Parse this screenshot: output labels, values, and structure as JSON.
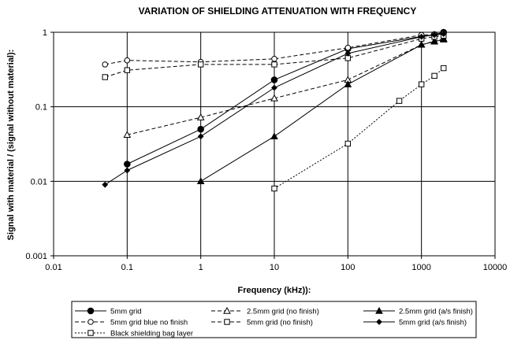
{
  "chart_data": {
    "type": "line",
    "title": "VARIATION OF SHIELDING ATTENUATION WITH FREQUENCY",
    "xlabel": "Frequency (kHz)):",
    "ylabel": "Signal with material / (signal without material):",
    "x_scale": "log",
    "y_scale": "log",
    "xlim": [
      0.01,
      10000
    ],
    "ylim": [
      0.001,
      1
    ],
    "x_ticks": [
      "0.01",
      "0.1",
      "1",
      "10",
      "100",
      "1000",
      "10000"
    ],
    "y_ticks": [
      "0.001",
      "0.01",
      "0.1",
      "1"
    ],
    "grid": true,
    "legend_position": "bottom",
    "series": [
      {
        "name": "5mm grid",
        "line": "solid",
        "marker": "circle-filled",
        "x": [
          0.1,
          1,
          10,
          100,
          1000,
          1500,
          2000
        ],
        "y": [
          0.017,
          0.05,
          0.23,
          0.6,
          0.88,
          0.93,
          1.0
        ]
      },
      {
        "name": "2.5mm grid (no finish)",
        "line": "dashed",
        "marker": "triangle-open",
        "x": [
          0.1,
          1,
          10,
          100,
          1000,
          1500,
          2000
        ],
        "y": [
          0.042,
          0.072,
          0.13,
          0.23,
          0.68,
          0.76,
          0.82
        ]
      },
      {
        "name": "2.5mm grid (a/s finish)",
        "line": "solid",
        "marker": "triangle-filled",
        "x": [
          1,
          10,
          100,
          1000,
          1500,
          2000
        ],
        "y": [
          0.01,
          0.04,
          0.2,
          0.68,
          0.75,
          0.8
        ]
      },
      {
        "name": "5mm grid blue no finish",
        "line": "dashed",
        "marker": "circle-open",
        "x": [
          0.05,
          0.1,
          1,
          10,
          100,
          1000,
          1500,
          2000
        ],
        "y": [
          0.37,
          0.42,
          0.4,
          0.44,
          0.62,
          0.92,
          0.93,
          0.96
        ]
      },
      {
        "name": "5mm grid (no finish)",
        "line": "dashed",
        "marker": "square-open",
        "x": [
          0.05,
          0.1,
          1,
          10,
          100,
          1000,
          1500,
          2000
        ],
        "y": [
          0.25,
          0.31,
          0.37,
          0.37,
          0.45,
          0.82,
          0.87,
          0.9
        ]
      },
      {
        "name": "5mm grid (a/s finish)",
        "line": "solid",
        "marker": "diamond-filled",
        "x": [
          0.05,
          0.1,
          1,
          10,
          100,
          1000,
          1500,
          2000
        ],
        "y": [
          0.009,
          0.014,
          0.04,
          0.18,
          0.52,
          0.87,
          0.92,
          0.95
        ]
      },
      {
        "name": "Black shielding bag layer",
        "line": "dotted",
        "marker": "square-open",
        "x": [
          10,
          100,
          500,
          1000,
          1500,
          2000
        ],
        "y": [
          0.008,
          0.032,
          0.12,
          0.2,
          0.26,
          0.33
        ]
      }
    ]
  }
}
